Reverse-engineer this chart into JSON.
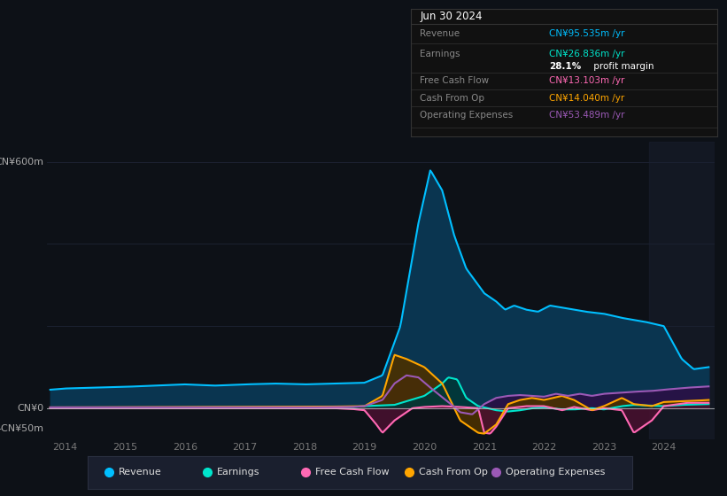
{
  "bg_color": "#0d1117",
  "plot_bg_color": "#0d1117",
  "info_box_bg": "#111111",
  "info_box_border": "#333333",
  "ylabel_600": "CN¥600m",
  "ylabel_0": "CN¥0",
  "ylabel_neg50": "-CN¥50m",
  "ylim": [
    -75,
    650
  ],
  "xlim": [
    2013.7,
    2024.85
  ],
  "xticks": [
    2014,
    2015,
    2016,
    2017,
    2018,
    2019,
    2020,
    2021,
    2022,
    2023,
    2024
  ],
  "grid_color": "#1e2535",
  "zero_line_color": "#cccccc",
  "revenue_color": "#00bfff",
  "revenue_fill": "#0a3550",
  "earnings_color": "#00e5cc",
  "earnings_fill": "#003838",
  "fcf_color": "#ff69b4",
  "fcf_fill": "#4a1030",
  "cfo_color": "#ffa500",
  "cfo_fill": "#4a3000",
  "opex_color": "#9b59b6",
  "opex_fill": "#2a1045",
  "legend_bg": "#1a1f2e",
  "legend_border": "#2a3040",
  "legend_items": [
    {
      "label": "Revenue",
      "color": "#00bfff"
    },
    {
      "label": "Earnings",
      "color": "#00e5cc"
    },
    {
      "label": "Free Cash Flow",
      "color": "#ff69b4"
    },
    {
      "label": "Cash From Op",
      "color": "#ffa500"
    },
    {
      "label": "Operating Expenses",
      "color": "#9b59b6"
    }
  ],
  "info_title": "Jun 30 2024",
  "info_rows": [
    {
      "label": "Revenue",
      "value": "CN¥95.535m /yr",
      "color": "#00bfff",
      "sub": null
    },
    {
      "label": "Earnings",
      "value": "CN¥26.836m /yr",
      "color": "#00e5cc",
      "sub": "28.1% profit margin"
    },
    {
      "label": "Free Cash Flow",
      "value": "CN¥13.103m /yr",
      "color": "#ff69b4",
      "sub": null
    },
    {
      "label": "Cash From Op",
      "value": "CN¥14.040m /yr",
      "color": "#ffa500",
      "sub": null
    },
    {
      "label": "Operating Expenses",
      "value": "CN¥53.489m /yr",
      "color": "#9b59b6",
      "sub": null
    }
  ]
}
